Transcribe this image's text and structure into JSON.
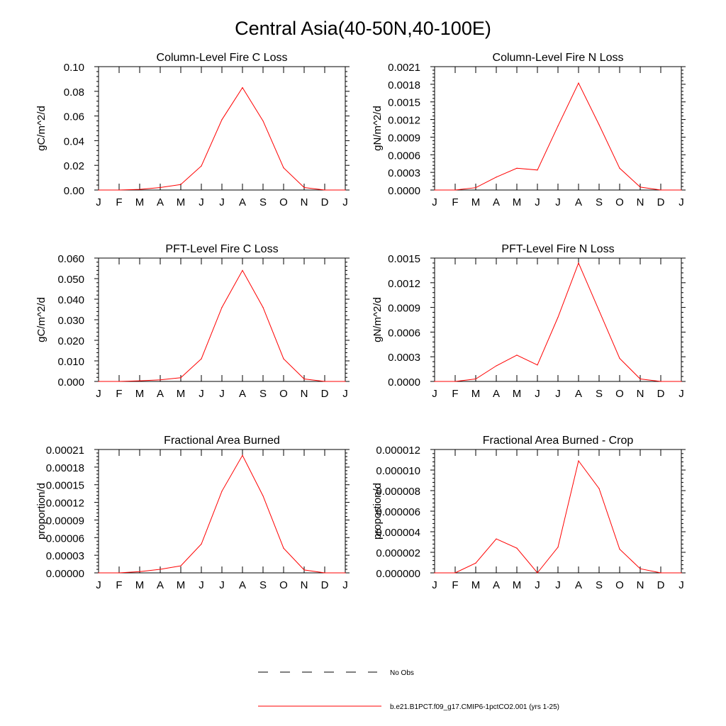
{
  "figure": {
    "title": "Central Asia(40-50N,40-100E)",
    "legend": [
      {
        "label": "No Obs",
        "style": "dashed",
        "color": "#000000"
      },
      {
        "label": "b.e21.B1PCT.f09_g17.CMIP6-1pctCO2.001 (yrs 1-25)",
        "style": "solid",
        "color": "#ff0000"
      }
    ]
  },
  "chart_data": [
    {
      "type": "line",
      "title": "Column-Level Fire C Loss",
      "ylabel": "gC/m^2/d",
      "xticklabels": [
        "J",
        "F",
        "M",
        "A",
        "M",
        "J",
        "J",
        "A",
        "S",
        "O",
        "N",
        "D",
        "J"
      ],
      "yticklabels": [
        "0.00",
        "0.02",
        "0.04",
        "0.06",
        "0.08",
        "0.10"
      ],
      "ylim": [
        0,
        0.1
      ],
      "series": [
        {
          "color": "#ff0000",
          "values": [
            0.0,
            0.0,
            0.0005,
            0.002,
            0.0045,
            0.0195,
            0.057,
            0.083,
            0.056,
            0.018,
            0.002,
            0.0,
            0.0
          ]
        }
      ]
    },
    {
      "type": "line",
      "title": "Column-Level Fire N Loss",
      "ylabel": "gN/m^2/d",
      "xticklabels": [
        "J",
        "F",
        "M",
        "A",
        "M",
        "J",
        "J",
        "A",
        "S",
        "O",
        "N",
        "D",
        "J"
      ],
      "yticklabels": [
        "0.0000",
        "0.0003",
        "0.0006",
        "0.0009",
        "0.0012",
        "0.0015",
        "0.0018",
        "0.0021"
      ],
      "ylim": [
        0,
        0.0021
      ],
      "series": [
        {
          "color": "#ff0000",
          "values": [
            0.0,
            0.0,
            4e-05,
            0.00022,
            0.00037,
            0.00034,
            0.00109,
            0.00182,
            0.00111,
            0.00037,
            5e-05,
            0.0,
            0.0
          ]
        }
      ]
    },
    {
      "type": "line",
      "title": "PFT-Level Fire C Loss",
      "ylabel": "gC/m^2/d",
      "xticklabels": [
        "J",
        "F",
        "M",
        "A",
        "M",
        "J",
        "J",
        "A",
        "S",
        "O",
        "N",
        "D",
        "J"
      ],
      "yticklabels": [
        "0.000",
        "0.010",
        "0.020",
        "0.030",
        "0.040",
        "0.050",
        "0.060"
      ],
      "ylim": [
        0,
        0.06
      ],
      "series": [
        {
          "color": "#ff0000",
          "values": [
            0.0,
            0.0,
            0.0003,
            0.0008,
            0.0018,
            0.011,
            0.036,
            0.054,
            0.036,
            0.011,
            0.0012,
            0.0,
            0.0
          ]
        }
      ]
    },
    {
      "type": "line",
      "title": "PFT-Level Fire N Loss",
      "ylabel": "gN/m^2/d",
      "xticklabels": [
        "J",
        "F",
        "M",
        "A",
        "M",
        "J",
        "J",
        "A",
        "S",
        "O",
        "N",
        "D",
        "J"
      ],
      "yticklabels": [
        "0.0000",
        "0.0003",
        "0.0006",
        "0.0009",
        "0.0012",
        "0.0015"
      ],
      "ylim": [
        0,
        0.0015
      ],
      "series": [
        {
          "color": "#ff0000",
          "values": [
            0.0,
            0.0,
            3e-05,
            0.00019,
            0.00032,
            0.0002,
            0.00078,
            0.00144,
            0.00086,
            0.00028,
            3e-05,
            0.0,
            0.0
          ]
        }
      ]
    },
    {
      "type": "line",
      "title": "Fractional Area Burned",
      "ylabel": "proportion/d",
      "xticklabels": [
        "J",
        "F",
        "M",
        "A",
        "M",
        "J",
        "J",
        "A",
        "S",
        "O",
        "N",
        "D",
        "J"
      ],
      "yticklabels": [
        "0.00000",
        "0.00003",
        "0.00006",
        "0.00009",
        "0.00012",
        "0.00015",
        "0.00018",
        "0.00021"
      ],
      "ylim": [
        0,
        0.00021
      ],
      "series": [
        {
          "color": "#ff0000",
          "values": [
            0.0,
            0.0,
            2e-06,
            6e-06,
            1.2e-05,
            4.9e-05,
            0.000139,
            0.0002,
            0.000131,
            4.2e-05,
            5e-06,
            0.0,
            0.0
          ]
        }
      ]
    },
    {
      "type": "line",
      "title": "Fractional Area Burned - Crop",
      "ylabel": "proportion/d",
      "xticklabels": [
        "J",
        "F",
        "M",
        "A",
        "M",
        "J",
        "J",
        "A",
        "S",
        "O",
        "N",
        "D",
        "J"
      ],
      "yticklabels": [
        "0.000000",
        "0.000002",
        "0.000004",
        "0.000006",
        "0.000008",
        "0.000010",
        "0.000012"
      ],
      "ylim": [
        0,
        1.2e-05
      ],
      "series": [
        {
          "color": "#ff0000",
          "values": [
            0.0,
            0.0,
            9.5e-07,
            3.3e-06,
            2.4e-06,
            0.0,
            2.5e-06,
            1.09e-05,
            8.2e-06,
            2.3e-06,
            4e-07,
            0.0,
            0.0
          ]
        }
      ]
    }
  ]
}
